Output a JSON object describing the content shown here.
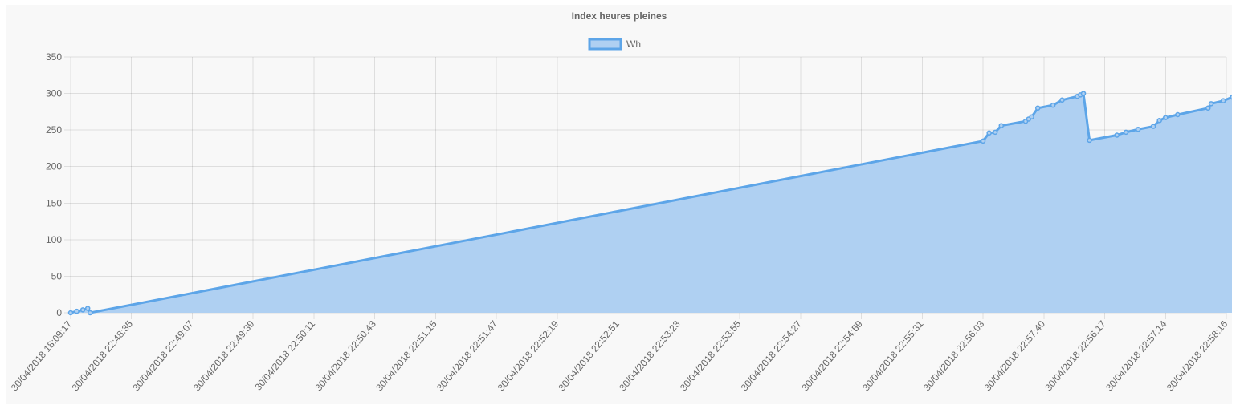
{
  "colors": {
    "line": "#5da5e8",
    "fill": "#afd0f2",
    "panel": "#f8f8f8",
    "grid": "rgba(0,0,0,0.1)",
    "text": "#666666"
  },
  "chart_data": {
    "type": "area",
    "title": "Index heures pleines",
    "legend": {
      "position": "top",
      "entries": [
        "Wh"
      ]
    },
    "ylim": [
      0,
      350
    ],
    "yticks": [
      0,
      50,
      100,
      150,
      200,
      250,
      300,
      350
    ],
    "grid": true,
    "x_tick_labels": [
      "30/04/2018 18:09:17",
      "30/04/2018 22:48:35",
      "30/04/2018 22:49:07",
      "30/04/2018 22:49:39",
      "30/04/2018 22:50:11",
      "30/04/2018 22:50:43",
      "30/04/2018 22:51:15",
      "30/04/2018 22:51:47",
      "30/04/2018 22:52:19",
      "30/04/2018 22:52:51",
      "30/04/2018 22:53:23",
      "30/04/2018 22:53:55",
      "30/04/2018 22:54:27",
      "30/04/2018 22:54:59",
      "30/04/2018 22:55:31",
      "30/04/2018 22:56:03",
      "30/04/2018 22:57:40",
      "30/04/2018 22:56:17",
      "30/04/2018 22:57:14",
      "30/04/2018 22:58:16"
    ],
    "series": [
      {
        "name": "Wh",
        "points": [
          [
            0,
            0
          ],
          [
            0.1,
            2
          ],
          [
            0.2,
            4
          ],
          [
            0.28,
            6
          ],
          [
            0.32,
            0
          ],
          [
            15.0,
            235
          ],
          [
            15.1,
            246
          ],
          [
            15.2,
            247
          ],
          [
            15.3,
            256
          ],
          [
            15.7,
            262
          ],
          [
            15.75,
            265
          ],
          [
            15.8,
            268
          ],
          [
            15.9,
            280
          ],
          [
            16.15,
            284
          ],
          [
            16.3,
            291
          ],
          [
            16.55,
            296
          ],
          [
            16.6,
            298
          ],
          [
            16.65,
            300
          ],
          [
            16.75,
            236
          ],
          [
            17.2,
            243
          ],
          [
            17.35,
            247
          ],
          [
            17.55,
            251
          ],
          [
            17.8,
            255
          ],
          [
            17.9,
            263
          ],
          [
            18.0,
            267
          ],
          [
            18.2,
            271
          ],
          [
            18.7,
            280
          ],
          [
            18.75,
            286
          ],
          [
            18.95,
            290
          ],
          [
            19.1,
            295
          ],
          [
            19.2,
            299
          ],
          [
            19.3,
            301
          ],
          [
            19.34,
            301
          ]
        ]
      }
    ]
  }
}
